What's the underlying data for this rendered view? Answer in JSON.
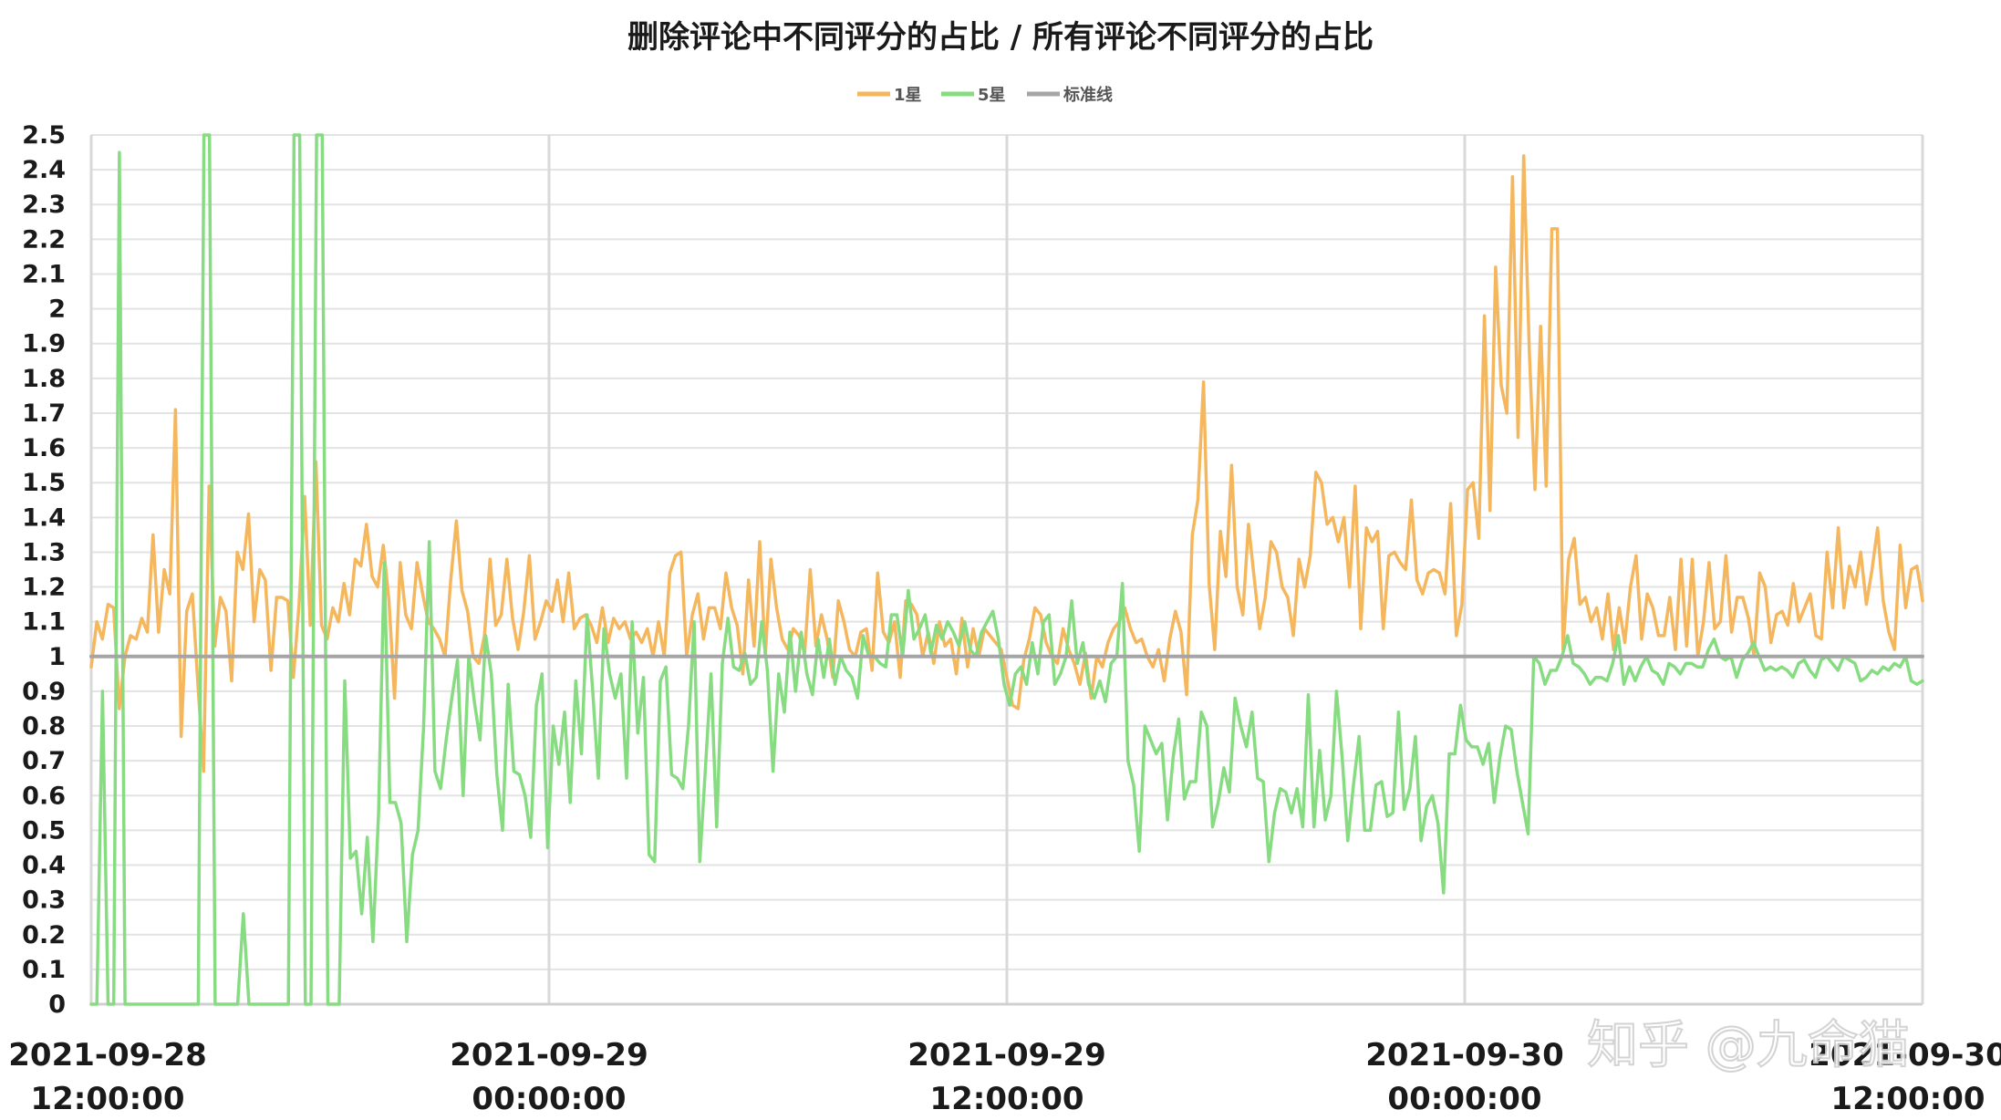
{
  "watermark": "知乎 @九命猫",
  "chart_data": {
    "type": "line",
    "title": "删除评论中不同评分的占比 / 所有评论不同评分的占比",
    "xlabel": "",
    "ylabel": "",
    "ylim": [
      0,
      2.5
    ],
    "y_ticks": [
      "0",
      "0.1",
      "0.2",
      "0.3",
      "0.4",
      "0.5",
      "0.6",
      "0.7",
      "0.8",
      "0.9",
      "1",
      "1.1",
      "1.2",
      "1.3",
      "1.4",
      "1.5",
      "1.6",
      "1.7",
      "1.8",
      "1.9",
      "2",
      "2.1",
      "2.2",
      "2.3",
      "2.4",
      "2.5"
    ],
    "x_ticks": [
      {
        "line1": "2021-09-28",
        "line2": "12:00:00"
      },
      {
        "line1": "2021-09-29",
        "line2": "00:00:00"
      },
      {
        "line1": "2021-09-29",
        "line2": "12:00:00"
      },
      {
        "line1": "2021-09-30",
        "line2": "00:00:00"
      },
      {
        "line1": "2021-09-30",
        "line2": "12:00:00"
      }
    ],
    "legend_position": "top-center",
    "grid": true,
    "series": [
      {
        "name": "1星",
        "color": "#f5b75e",
        "values": [
          0.97,
          1.1,
          1.05,
          1.15,
          1.14,
          0.85,
          1.0,
          1.06,
          1.05,
          1.11,
          1.07,
          1.35,
          1.07,
          1.25,
          1.18,
          1.71,
          0.77,
          1.13,
          1.18,
          0.92,
          0.67,
          1.49,
          1.03,
          1.17,
          1.13,
          0.93,
          1.3,
          1.25,
          1.41,
          1.1,
          1.25,
          1.22,
          0.96,
          1.17,
          1.17,
          1.16,
          0.94,
          1.15,
          1.46,
          1.09,
          1.56,
          1.09,
          1.05,
          1.14,
          1.1,
          1.21,
          1.12,
          1.28,
          1.26,
          1.38,
          1.23,
          1.2,
          1.32,
          1.16,
          0.88,
          1.27,
          1.12,
          1.08,
          1.27,
          1.18,
          1.1,
          1.08,
          1.05,
          1.0,
          1.22,
          1.39,
          1.19,
          1.13,
          1.0,
          0.98,
          1.06,
          1.28,
          1.09,
          1.12,
          1.28,
          1.11,
          1.02,
          1.13,
          1.29,
          1.05,
          1.1,
          1.16,
          1.13,
          1.22,
          1.1,
          1.24,
          1.08,
          1.11,
          1.12,
          1.09,
          1.04,
          1.14,
          1.04,
          1.11,
          1.08,
          1.1,
          1.05,
          1.07,
          1.04,
          1.08,
          1.0,
          1.1,
          1.0,
          1.24,
          1.29,
          1.3,
          1.0,
          1.12,
          1.18,
          1.05,
          1.14,
          1.14,
          1.08,
          1.24,
          1.14,
          1.09,
          0.95,
          1.22,
          1.03,
          1.33,
          1.0,
          1.28,
          1.14,
          1.05,
          1.02,
          1.08,
          1.06,
          1.01,
          1.25,
          1.03,
          1.12,
          1.05,
          0.94,
          1.16,
          1.1,
          1.02,
          1.0,
          1.07,
          1.08,
          0.96,
          1.24,
          1.07,
          1.04,
          1.1,
          0.94,
          1.16,
          1.15,
          1.12,
          1.0,
          1.07,
          0.98,
          1.1,
          1.03,
          1.05,
          0.95,
          1.11,
          0.97,
          1.08,
          1.0,
          1.08,
          1.06,
          1.04,
          1.02,
          0.94,
          0.86,
          0.85,
          0.99,
          1.05,
          1.14,
          1.12,
          1.04,
          1.0,
          0.98,
          1.08,
          1.02,
          0.98,
          0.92,
          1.01,
          0.88,
          1.0,
          0.97,
          1.04,
          1.08,
          1.1,
          1.14,
          1.08,
          1.04,
          1.05,
          1.0,
          0.97,
          1.02,
          0.93,
          1.05,
          1.13,
          1.07,
          0.89,
          1.35,
          1.45,
          1.79,
          1.21,
          1.02,
          1.36,
          1.23,
          1.55,
          1.2,
          1.12,
          1.38,
          1.23,
          1.08,
          1.17,
          1.33,
          1.3,
          1.2,
          1.17,
          1.06,
          1.28,
          1.2,
          1.29,
          1.53,
          1.5,
          1.38,
          1.4,
          1.33,
          1.4,
          1.2,
          1.49,
          1.08,
          1.37,
          1.33,
          1.36,
          1.08,
          1.29,
          1.3,
          1.27,
          1.25,
          1.45,
          1.22,
          1.18,
          1.24,
          1.25,
          1.24,
          1.18,
          1.44,
          1.06,
          1.15,
          1.48,
          1.5,
          1.34,
          1.98,
          1.42,
          2.12,
          1.78,
          1.7,
          2.38,
          1.63,
          2.44,
          1.88,
          1.48,
          1.95,
          1.49,
          2.23,
          2.23,
          1.02,
          1.28,
          1.34,
          1.15,
          1.17,
          1.1,
          1.14,
          1.05,
          1.18,
          1.02,
          1.14,
          1.04,
          1.2,
          1.29,
          1.05,
          1.18,
          1.14,
          1.06,
          1.06,
          1.17,
          1.02,
          1.28,
          1.03,
          1.28,
          1.0,
          1.1,
          1.27,
          1.08,
          1.1,
          1.29,
          1.07,
          1.17,
          1.17,
          1.11,
          1.0,
          1.24,
          1.2,
          1.04,
          1.12,
          1.13,
          1.09,
          1.21,
          1.1,
          1.14,
          1.18,
          1.06,
          1.05,
          1.3,
          1.14,
          1.37,
          1.14,
          1.26,
          1.2,
          1.3,
          1.15,
          1.25,
          1.37,
          1.16,
          1.07,
          1.02,
          1.32,
          1.14,
          1.25,
          1.26,
          1.16
        ]
      },
      {
        "name": "5星",
        "color": "#87dc82",
        "values": [
          0,
          0,
          0.9,
          0,
          0,
          2.45,
          0,
          0,
          0,
          0,
          0,
          0,
          0,
          0,
          0,
          0,
          0,
          0,
          0,
          0,
          2.5,
          2.5,
          0,
          0,
          0,
          0,
          0,
          0.26,
          0,
          0,
          0,
          0,
          0,
          0,
          0,
          0,
          2.5,
          2.5,
          0,
          0,
          2.5,
          2.5,
          0,
          0,
          0,
          0.93,
          0.42,
          0.44,
          0.26,
          0.48,
          0.18,
          0.55,
          1.27,
          0.58,
          0.58,
          0.52,
          0.18,
          0.43,
          0.5,
          0.8,
          1.33,
          0.67,
          0.62,
          0.76,
          0.88,
          0.99,
          0.6,
          1.0,
          0.87,
          0.76,
          1.06,
          0.95,
          0.66,
          0.5,
          0.92,
          0.67,
          0.66,
          0.6,
          0.48,
          0.86,
          0.95,
          0.45,
          0.8,
          0.69,
          0.84,
          0.58,
          0.93,
          0.72,
          1.12,
          0.9,
          0.65,
          1.08,
          0.95,
          0.88,
          0.95,
          0.65,
          1.1,
          0.78,
          0.94,
          0.43,
          0.41,
          0.93,
          0.97,
          0.66,
          0.65,
          0.62,
          0.8,
          1.1,
          0.41,
          0.68,
          0.95,
          0.51,
          0.98,
          1.11,
          0.97,
          0.96,
          1.01,
          0.92,
          0.94,
          1.1,
          0.96,
          0.67,
          0.95,
          0.84,
          1.07,
          0.9,
          1.07,
          0.95,
          0.89,
          1.05,
          0.94,
          1.05,
          0.92,
          1.0,
          0.96,
          0.94,
          0.88,
          1.06,
          1.0,
          1.0,
          0.98,
          0.97,
          1.12,
          1.12,
          1.0,
          1.19,
          1.05,
          1.08,
          1.12,
          1.01,
          1.09,
          1.05,
          1.1,
          1.07,
          1.03,
          1.1,
          1.02,
          1.0,
          1.07,
          1.1,
          1.13,
          1.05,
          0.92,
          0.86,
          0.95,
          0.97,
          0.92,
          1.04,
          0.95,
          1.1,
          1.12,
          0.92,
          0.95,
          1.0,
          1.16,
          0.98,
          1.04,
          0.92,
          0.88,
          0.93,
          0.87,
          0.98,
          1.0,
          1.21,
          0.7,
          0.63,
          0.44,
          0.8,
          0.76,
          0.72,
          0.75,
          0.53,
          0.71,
          0.82,
          0.59,
          0.64,
          0.64,
          0.84,
          0.8,
          0.51,
          0.58,
          0.68,
          0.61,
          0.88,
          0.8,
          0.74,
          0.84,
          0.65,
          0.64,
          0.41,
          0.55,
          0.62,
          0.61,
          0.55,
          0.62,
          0.51,
          0.89,
          0.51,
          0.73,
          0.53,
          0.6,
          0.9,
          0.71,
          0.47,
          0.63,
          0.77,
          0.5,
          0.5,
          0.63,
          0.64,
          0.54,
          0.55,
          0.84,
          0.56,
          0.62,
          0.77,
          0.47,
          0.57,
          0.6,
          0.52,
          0.32,
          0.72,
          0.72,
          0.86,
          0.76,
          0.74,
          0.74,
          0.69,
          0.75,
          0.58,
          0.71,
          0.8,
          0.79,
          0.67,
          0.58,
          0.49,
          1.0,
          0.98,
          0.92,
          0.96,
          0.96,
          1.0,
          1.06,
          0.98,
          0.97,
          0.95,
          0.92,
          0.94,
          0.94,
          0.93,
          0.98,
          1.06,
          0.92,
          0.97,
          0.93,
          0.97,
          1.0,
          0.96,
          0.95,
          0.92,
          0.98,
          0.97,
          0.95,
          0.98,
          0.98,
          0.97,
          0.97,
          1.02,
          1.05,
          1.0,
          0.99,
          1.0,
          0.94,
          0.99,
          1.01,
          1.04,
          1.0,
          0.96,
          0.97,
          0.96,
          0.97,
          0.96,
          0.94,
          0.98,
          0.99,
          0.96,
          0.94,
          0.99,
          1.0,
          0.98,
          0.96,
          1.0,
          0.99,
          0.98,
          0.93,
          0.94,
          0.96,
          0.95,
          0.97,
          0.96,
          0.98,
          0.97,
          1.0,
          0.93,
          0.92,
          0.93
        ]
      },
      {
        "name": "标准线",
        "color": "#a5a5a5",
        "values": [
          1,
          1
        ]
      }
    ]
  }
}
